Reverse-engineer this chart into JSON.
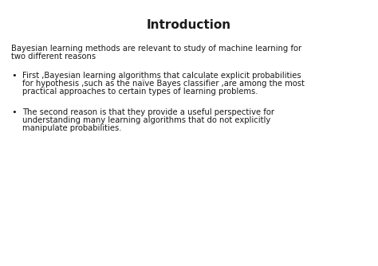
{
  "title": "Introduction",
  "background_color": "#ffffff",
  "text_color": "#1a1a1a",
  "title_fontsize": 11,
  "body_fontsize": 7.2,
  "intro_line1": "Bayesian learning methods are relevant to study of machine learning for",
  "intro_line2": "two different reasons",
  "bullet1_line1": "First ,Bayesian learning algorithms that calculate explicit probabilities",
  "bullet1_line2": "for hypothesis ,such as the naïve Bayes classifier ,are among the most",
  "bullet1_line3": "practical approaches to certain types of learning problems.",
  "bullet2_line1": "The second reason is that they provide a useful perspective for",
  "bullet2_line2": "understanding many learning algorithms that do not explicitly",
  "bullet2_line3": "manipulate probabilities."
}
